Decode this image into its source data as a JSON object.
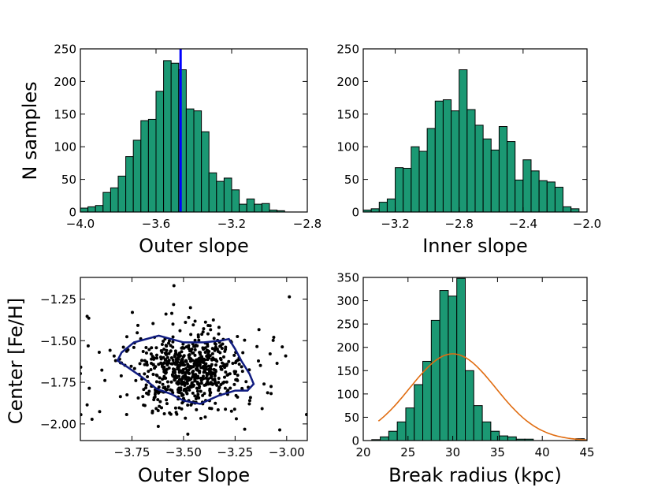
{
  "colors": {
    "bar_fill": "#1b9873",
    "bar_edge": "#000000",
    "median_line": "#0000ff",
    "contour": "#101c80",
    "gaussian": "#e06c10",
    "scatter": "#000000"
  },
  "chart_data": [
    {
      "id": "p1",
      "type": "bar",
      "subtype": "histogram",
      "title": "",
      "xlabel": "Outer slope",
      "ylabel": "N samples",
      "xlim": [
        -4.0,
        -2.8
      ],
      "ylim": [
        0,
        250
      ],
      "xticks": [
        -4.0,
        -3.6,
        -3.2,
        -2.8
      ],
      "xtick_labels": [
        "−4.0",
        "−3.6",
        "−3.2",
        "−2.8"
      ],
      "yticks": [
        0,
        50,
        100,
        150,
        200,
        250
      ],
      "ytick_labels": [
        "0",
        "50",
        "100",
        "150",
        "200",
        "250"
      ],
      "bin_start": -4.0,
      "bin_width": 0.04,
      "values": [
        6,
        8,
        10,
        30,
        37,
        55,
        85,
        110,
        140,
        142,
        185,
        232,
        228,
        218,
        158,
        155,
        123,
        60,
        47,
        52,
        34,
        12,
        20,
        12,
        13,
        3,
        2
      ],
      "vline": {
        "x": -3.47,
        "label": "median"
      }
    },
    {
      "id": "p2",
      "type": "bar",
      "subtype": "histogram",
      "title": "",
      "xlabel": "Inner slope",
      "ylabel": "",
      "xlim": [
        -3.4,
        -2.0
      ],
      "ylim": [
        0,
        250
      ],
      "xticks": [
        -3.2,
        -2.8,
        -2.4,
        -2.0
      ],
      "xtick_labels": [
        "−3.2",
        "−2.8",
        "−2.4",
        "−2.0"
      ],
      "yticks": [
        0,
        50,
        100,
        150,
        200,
        250
      ],
      "ytick_labels": [
        "0",
        "50",
        "100",
        "150",
        "200",
        "250"
      ],
      "bin_start": -3.4,
      "bin_width": 0.05,
      "values": [
        3,
        5,
        15,
        20,
        68,
        67,
        100,
        93,
        128,
        170,
        172,
        155,
        218,
        157,
        133,
        112,
        95,
        131,
        108,
        49,
        80,
        63,
        48,
        46,
        38,
        8,
        5
      ]
    },
    {
      "id": "p3",
      "type": "scatter",
      "title": "",
      "xlabel": "Outer Slope",
      "ylabel": "Center [Fe/H]",
      "xlim": [
        -4.0,
        -2.9
      ],
      "ylim": [
        -2.1,
        -1.12
      ],
      "xticks": [
        -3.75,
        -3.5,
        -3.25,
        -3.0
      ],
      "xtick_labels": [
        "−3.75",
        "−3.50",
        "−3.25",
        "−3.00"
      ],
      "yticks": [
        -1.25,
        -1.5,
        -1.75,
        -2.0
      ],
      "ytick_labels": [
        "−1.25",
        "−1.50",
        "−1.75",
        "−2.00"
      ],
      "cloud": {
        "n_points": 700,
        "center_x": -3.48,
        "center_y": -1.68,
        "sd_x": 0.13,
        "sd_y": 0.12,
        "seed": 7
      },
      "contour": {
        "x": [
          -3.8,
          -3.74,
          -3.62,
          -3.5,
          -3.4,
          -3.32,
          -3.28,
          -3.25,
          -3.22,
          -3.18,
          -3.16,
          -3.19,
          -3.25,
          -3.33,
          -3.42,
          -3.5,
          -3.56,
          -3.63,
          -3.7,
          -3.77,
          -3.82
        ],
        "y": [
          -1.57,
          -1.51,
          -1.47,
          -1.51,
          -1.51,
          -1.5,
          -1.49,
          -1.55,
          -1.62,
          -1.7,
          -1.76,
          -1.8,
          -1.8,
          -1.83,
          -1.88,
          -1.86,
          -1.82,
          -1.79,
          -1.72,
          -1.66,
          -1.62
        ]
      }
    },
    {
      "id": "p4",
      "type": "bar",
      "subtype": "histogram",
      "title": "",
      "xlabel": "Break radius (kpc)",
      "ylabel": "",
      "xlim": [
        20,
        45
      ],
      "ylim": [
        0,
        350
      ],
      "xticks": [
        20,
        25,
        30,
        35,
        40,
        45
      ],
      "xtick_labels": [
        "20",
        "25",
        "30",
        "35",
        "40",
        "45"
      ],
      "yticks": [
        0,
        50,
        100,
        150,
        200,
        250,
        300,
        350
      ],
      "ytick_labels": [
        "0",
        "50",
        "100",
        "150",
        "200",
        "250",
        "300",
        "350"
      ],
      "bin_start": 20,
      "bin_width": 0.95,
      "values": [
        0,
        2,
        8,
        20,
        40,
        70,
        120,
        170,
        258,
        322,
        310,
        348,
        150,
        75,
        40,
        20,
        10,
        8,
        3,
        3,
        0,
        0,
        0,
        0,
        0,
        4
      ],
      "gaussian": {
        "mu": 30.0,
        "sigma": 4.8,
        "peak": 186,
        "x_from": 21.7,
        "x_to": 45
      }
    }
  ]
}
